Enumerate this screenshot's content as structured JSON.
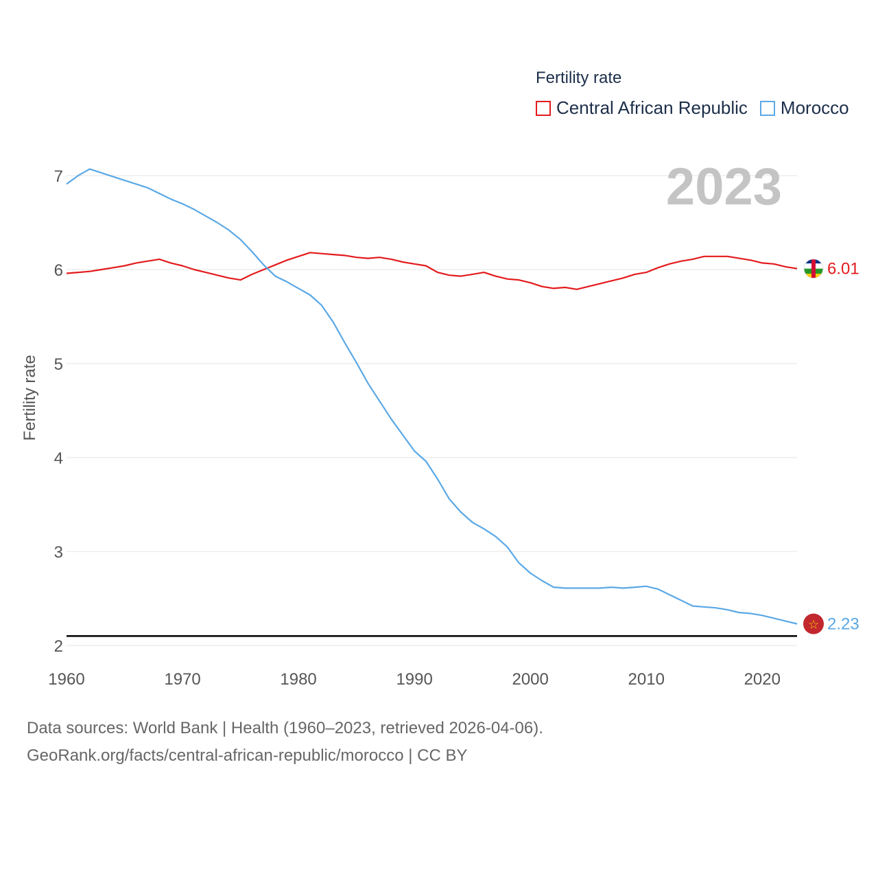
{
  "legend": {
    "title": "Fertility rate",
    "items": [
      {
        "label": "Central African Republic",
        "color": "#e31a1c"
      },
      {
        "label": "Morocco",
        "color": "#5aa8e6"
      }
    ]
  },
  "year_badge": "2023",
  "footer": {
    "line1": "Data sources: World Bank | Health (1960–2023, retrieved 2026-04-06).",
    "line2": "GeoRank.org/facts/central-african-republic/morocco | CC BY"
  },
  "chart_data": {
    "type": "line",
    "title": "Fertility rate",
    "xlabel": "",
    "ylabel": "Fertility rate",
    "xlim": [
      1960,
      2023
    ],
    "ylim": [
      2,
      7
    ],
    "xticks": [
      1960,
      1970,
      1980,
      1990,
      2000,
      2010,
      2020
    ],
    "yticks": [
      2,
      3,
      4,
      5,
      6,
      7
    ],
    "grid": true,
    "reference_line": {
      "y": 2.1,
      "color": "#000000"
    },
    "x": [
      1960,
      1961,
      1962,
      1963,
      1964,
      1965,
      1966,
      1967,
      1968,
      1969,
      1970,
      1971,
      1972,
      1973,
      1974,
      1975,
      1976,
      1977,
      1978,
      1979,
      1980,
      1981,
      1982,
      1983,
      1984,
      1985,
      1986,
      1987,
      1988,
      1989,
      1990,
      1991,
      1992,
      1993,
      1994,
      1995,
      1996,
      1997,
      1998,
      1999,
      2000,
      2001,
      2002,
      2003,
      2004,
      2005,
      2006,
      2007,
      2008,
      2009,
      2010,
      2011,
      2012,
      2013,
      2014,
      2015,
      2016,
      2017,
      2018,
      2019,
      2020,
      2021,
      2022,
      2023
    ],
    "series": [
      {
        "name": "Central African Republic",
        "color": "#e31a1c",
        "end_label": "6.01",
        "values": [
          5.96,
          5.97,
          5.98,
          6.0,
          6.02,
          6.04,
          6.07,
          6.09,
          6.11,
          6.07,
          6.04,
          6.0,
          5.97,
          5.94,
          5.91,
          5.89,
          5.95,
          6.0,
          6.05,
          6.1,
          6.14,
          6.18,
          6.17,
          6.16,
          6.15,
          6.13,
          6.12,
          6.13,
          6.11,
          6.08,
          6.06,
          6.04,
          5.97,
          5.94,
          5.93,
          5.95,
          5.97,
          5.93,
          5.9,
          5.89,
          5.86,
          5.82,
          5.8,
          5.81,
          5.79,
          5.82,
          5.85,
          5.88,
          5.91,
          5.95,
          5.97,
          6.02,
          6.06,
          6.09,
          6.11,
          6.14,
          6.14,
          6.14,
          6.12,
          6.1,
          6.07,
          6.06,
          6.03,
          6.01
        ]
      },
      {
        "name": "Morocco",
        "color": "#5aa8e6",
        "end_label": "2.23",
        "values": [
          6.91,
          7.0,
          7.07,
          7.03,
          6.99,
          6.95,
          6.91,
          6.87,
          6.81,
          6.75,
          6.7,
          6.64,
          6.57,
          6.5,
          6.42,
          6.32,
          6.19,
          6.05,
          5.93,
          5.87,
          5.8,
          5.73,
          5.62,
          5.44,
          5.22,
          5.01,
          4.79,
          4.6,
          4.41,
          4.24,
          4.07,
          3.96,
          3.77,
          3.56,
          3.42,
          3.31,
          3.24,
          3.16,
          3.05,
          2.88,
          2.77,
          2.69,
          2.62,
          2.61,
          2.61,
          2.61,
          2.61,
          2.62,
          2.61,
          2.62,
          2.63,
          2.6,
          2.54,
          2.48,
          2.42,
          2.41,
          2.4,
          2.38,
          2.35,
          2.34,
          2.32,
          2.29,
          2.26,
          2.23
        ]
      }
    ]
  }
}
